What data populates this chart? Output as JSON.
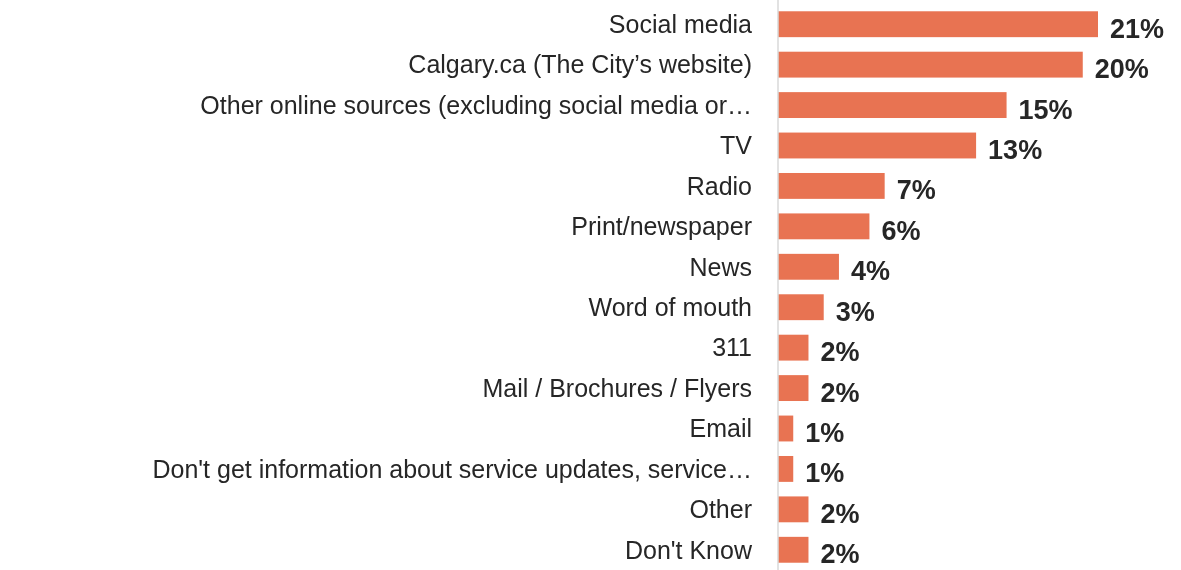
{
  "chart_data": {
    "type": "bar",
    "orientation": "horizontal",
    "categories": [
      "Social media",
      "Calgary.ca (The City’s website)",
      "Other online sources (excluding social media or…",
      "TV",
      "Radio",
      "Print/newspaper",
      "News",
      "Word of mouth",
      "311",
      "Mail / Brochures / Flyers",
      "Email",
      "Don't get information about service updates, service…",
      "Other",
      "Don't Know"
    ],
    "values": [
      21,
      20,
      15,
      13,
      7,
      6,
      4,
      3,
      2,
      2,
      1,
      1,
      2,
      2
    ],
    "value_labels": [
      "21%",
      "20%",
      "15%",
      "13%",
      "7%",
      "6%",
      "4%",
      "3%",
      "2%",
      "2%",
      "1%",
      "1%",
      "2%",
      "2%"
    ],
    "color": "#e87352"
  }
}
